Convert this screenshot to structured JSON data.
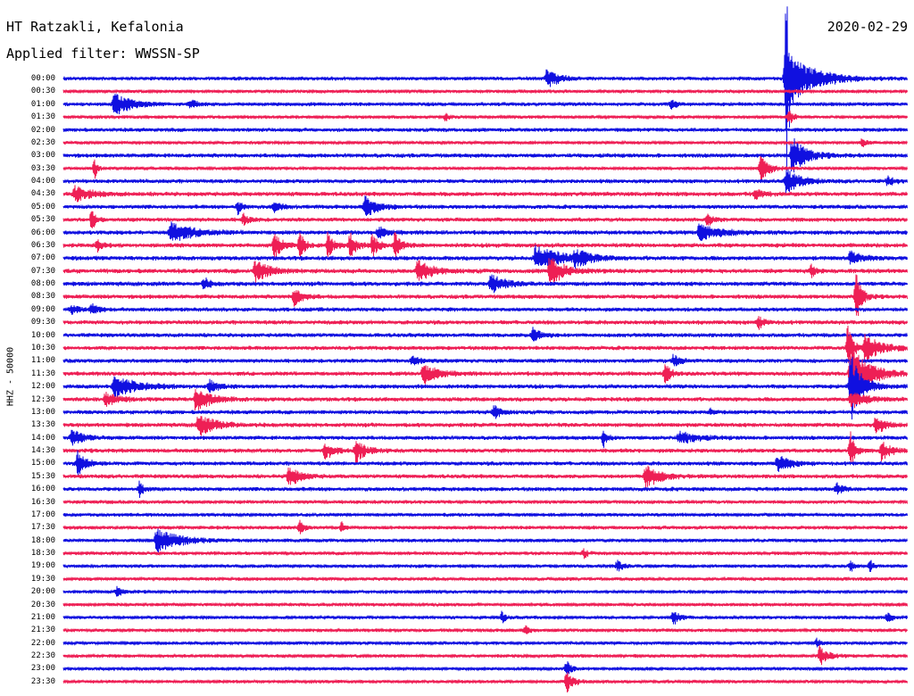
{
  "header": {
    "station": "HT Ratzakli, Kefalonia",
    "filter": "Applied filter: WWSSN-SP",
    "date": "2020-02-29",
    "channel": "HHZ - 50000"
  },
  "chart_data": {
    "type": "line",
    "title": "HT Ratzakli, Kefalonia",
    "subtitle": "Applied filter: WWSSN-SP",
    "ylabel": "HHZ - 50000",
    "row_minutes": 30,
    "row_labels": [
      "00:00",
      "00:30",
      "01:00",
      "01:30",
      "02:00",
      "02:30",
      "03:00",
      "03:30",
      "04:00",
      "04:30",
      "05:00",
      "05:30",
      "06:00",
      "06:30",
      "07:00",
      "07:30",
      "08:00",
      "08:30",
      "09:00",
      "09:30",
      "10:00",
      "10:30",
      "11:00",
      "11:30",
      "12:00",
      "12:30",
      "13:00",
      "13:30",
      "14:00",
      "14:30",
      "15:00",
      "15:30",
      "16:00",
      "16:30",
      "17:00",
      "17:30",
      "18:00",
      "18:30",
      "19:00",
      "19:30",
      "20:00",
      "20:30",
      "21:00",
      "21:30",
      "22:00",
      "22:30",
      "23:00",
      "23:30"
    ],
    "colors": [
      "#1010e0",
      "#ee1f55"
    ],
    "noise": [
      2.4,
      2.0,
      2.4,
      2.0,
      2.5,
      2.0,
      2.7,
      2.0,
      2.6,
      2.8,
      2.6,
      2.6,
      2.8,
      2.8,
      2.8,
      2.9,
      2.8,
      2.7,
      2.6,
      2.7,
      2.6,
      2.6,
      2.6,
      2.7,
      2.7,
      2.7,
      2.6,
      2.7,
      2.6,
      2.7,
      2.6,
      2.6,
      2.6,
      2.3,
      2.3,
      2.3,
      2.2,
      2.2,
      2.2,
      2.2,
      2.2,
      2.1,
      2.1,
      2.1,
      2.0,
      2.1,
      2.0,
      2.0
    ],
    "events": [
      {
        "row": 0,
        "minute": 17.2,
        "amp": 11,
        "duration": 0.8
      },
      {
        "row": 0,
        "minute": 25.7,
        "amp": 95,
        "duration": 0.2
      },
      {
        "row": 0,
        "minute": 25.7,
        "amp": 30,
        "duration": 2.0
      },
      {
        "row": 2,
        "minute": 1.8,
        "amp": 13,
        "duration": 1.2
      },
      {
        "row": 2,
        "minute": 4.5,
        "amp": 5,
        "duration": 0.6
      },
      {
        "row": 2,
        "minute": 21.6,
        "amp": 5,
        "duration": 0.4
      },
      {
        "row": 3,
        "minute": 13.6,
        "amp": 5,
        "duration": 0.3
      },
      {
        "row": 3,
        "minute": 25.8,
        "amp": 9,
        "duration": 0.3
      },
      {
        "row": 5,
        "minute": 28.4,
        "amp": 5,
        "duration": 0.3
      },
      {
        "row": 6,
        "minute": 25.9,
        "amp": 22,
        "duration": 1.0
      },
      {
        "row": 7,
        "minute": 24.8,
        "amp": 13,
        "duration": 0.7
      },
      {
        "row": 7,
        "minute": 1.1,
        "amp": 12,
        "duration": 0.2
      },
      {
        "row": 8,
        "minute": 25.7,
        "amp": 14,
        "duration": 1.0
      },
      {
        "row": 8,
        "minute": 29.3,
        "amp": 5,
        "duration": 0.5
      },
      {
        "row": 9,
        "minute": 0.4,
        "amp": 9,
        "duration": 1.1
      },
      {
        "row": 9,
        "minute": 24.6,
        "amp": 6,
        "duration": 0.5
      },
      {
        "row": 10,
        "minute": 10.7,
        "amp": 12,
        "duration": 0.9
      },
      {
        "row": 10,
        "minute": 6.2,
        "amp": 8,
        "duration": 0.3
      },
      {
        "row": 10,
        "minute": 7.5,
        "amp": 6,
        "duration": 0.5
      },
      {
        "row": 11,
        "minute": 1.0,
        "amp": 12,
        "duration": 0.3
      },
      {
        "row": 11,
        "minute": 6.4,
        "amp": 6,
        "duration": 0.4
      },
      {
        "row": 11,
        "minute": 22.9,
        "amp": 7,
        "duration": 0.4
      },
      {
        "row": 12,
        "minute": 3.8,
        "amp": 12,
        "duration": 1.5
      },
      {
        "row": 12,
        "minute": 11.2,
        "amp": 6,
        "duration": 0.6
      },
      {
        "row": 12,
        "minute": 22.6,
        "amp": 9,
        "duration": 1.5
      },
      {
        "row": 13,
        "minute": 7.5,
        "amp": 16,
        "duration": 0.5
      },
      {
        "row": 13,
        "minute": 8.4,
        "amp": 14,
        "duration": 0.4
      },
      {
        "row": 13,
        "minute": 9.4,
        "amp": 14,
        "duration": 0.4
      },
      {
        "row": 13,
        "minute": 10.2,
        "amp": 14,
        "duration": 0.4
      },
      {
        "row": 13,
        "minute": 11.0,
        "amp": 14,
        "duration": 0.4
      },
      {
        "row": 13,
        "minute": 11.8,
        "amp": 14,
        "duration": 0.4
      },
      {
        "row": 13,
        "minute": 1.2,
        "amp": 7,
        "duration": 0.3
      },
      {
        "row": 14,
        "minute": 16.8,
        "amp": 14,
        "duration": 1.8
      },
      {
        "row": 14,
        "minute": 18.2,
        "amp": 8,
        "duration": 1.0
      },
      {
        "row": 14,
        "minute": 28.0,
        "amp": 8,
        "duration": 0.8
      },
      {
        "row": 15,
        "minute": 6.8,
        "amp": 13,
        "duration": 1.0
      },
      {
        "row": 15,
        "minute": 12.6,
        "amp": 12,
        "duration": 1.0
      },
      {
        "row": 15,
        "minute": 17.3,
        "amp": 16,
        "duration": 1.0
      },
      {
        "row": 15,
        "minute": 26.6,
        "amp": 6,
        "duration": 0.4
      },
      {
        "row": 16,
        "minute": 15.2,
        "amp": 10,
        "duration": 1.0
      },
      {
        "row": 16,
        "minute": 5.0,
        "amp": 7,
        "duration": 0.4
      },
      {
        "row": 17,
        "minute": 8.2,
        "amp": 10,
        "duration": 0.6
      },
      {
        "row": 17,
        "minute": 28.2,
        "amp": 28,
        "duration": 0.4
      },
      {
        "row": 18,
        "minute": 0.3,
        "amp": 5,
        "duration": 0.5
      },
      {
        "row": 18,
        "minute": 1.0,
        "amp": 6,
        "duration": 0.5
      },
      {
        "row": 19,
        "minute": 24.7,
        "amp": 7,
        "duration": 0.5
      },
      {
        "row": 20,
        "minute": 16.7,
        "amp": 8,
        "duration": 0.6
      },
      {
        "row": 21,
        "minute": 27.9,
        "amp": 26,
        "duration": 0.4
      },
      {
        "row": 21,
        "minute": 28.5,
        "amp": 14,
        "duration": 1.2
      },
      {
        "row": 22,
        "minute": 12.4,
        "amp": 6,
        "duration": 0.5
      },
      {
        "row": 22,
        "minute": 21.7,
        "amp": 6,
        "duration": 0.6
      },
      {
        "row": 23,
        "minute": 12.8,
        "amp": 11,
        "duration": 1.0
      },
      {
        "row": 23,
        "minute": 21.4,
        "amp": 12,
        "duration": 0.4
      },
      {
        "row": 23,
        "minute": 28.0,
        "amp": 34,
        "duration": 1.3
      },
      {
        "row": 24,
        "minute": 1.8,
        "amp": 12,
        "duration": 1.6
      },
      {
        "row": 24,
        "minute": 5.2,
        "amp": 7,
        "duration": 0.6
      },
      {
        "row": 24,
        "minute": 28.0,
        "amp": 40,
        "duration": 0.8
      },
      {
        "row": 25,
        "minute": 1.5,
        "amp": 8,
        "duration": 0.8
      },
      {
        "row": 25,
        "minute": 4.7,
        "amp": 14,
        "duration": 1.0
      },
      {
        "row": 25,
        "minute": 28.0,
        "amp": 10,
        "duration": 1.0
      },
      {
        "row": 26,
        "minute": 15.3,
        "amp": 8,
        "duration": 0.5
      },
      {
        "row": 26,
        "minute": 23.0,
        "amp": 5,
        "duration": 0.3
      },
      {
        "row": 27,
        "minute": 4.8,
        "amp": 12,
        "duration": 1.2
      },
      {
        "row": 27,
        "minute": 28.9,
        "amp": 10,
        "duration": 0.7
      },
      {
        "row": 28,
        "minute": 0.3,
        "amp": 10,
        "duration": 0.8
      },
      {
        "row": 28,
        "minute": 19.2,
        "amp": 10,
        "duration": 0.3
      },
      {
        "row": 28,
        "minute": 21.9,
        "amp": 7,
        "duration": 1.2
      },
      {
        "row": 29,
        "minute": 9.3,
        "amp": 10,
        "duration": 0.6
      },
      {
        "row": 29,
        "minute": 10.4,
        "amp": 14,
        "duration": 0.6
      },
      {
        "row": 29,
        "minute": 28.0,
        "amp": 22,
        "duration": 0.3
      },
      {
        "row": 29,
        "minute": 29.1,
        "amp": 12,
        "duration": 0.6
      },
      {
        "row": 30,
        "minute": 0.5,
        "amp": 14,
        "duration": 0.6
      },
      {
        "row": 30,
        "minute": 25.4,
        "amp": 9,
        "duration": 0.9
      },
      {
        "row": 31,
        "minute": 8.0,
        "amp": 12,
        "duration": 0.8
      },
      {
        "row": 31,
        "minute": 20.7,
        "amp": 14,
        "duration": 1.0
      },
      {
        "row": 32,
        "minute": 2.7,
        "amp": 8,
        "duration": 0.3
      },
      {
        "row": 32,
        "minute": 27.5,
        "amp": 6,
        "duration": 0.5
      },
      {
        "row": 35,
        "minute": 8.4,
        "amp": 8,
        "duration": 0.3
      },
      {
        "row": 35,
        "minute": 9.9,
        "amp": 6,
        "duration": 0.2
      },
      {
        "row": 36,
        "minute": 3.3,
        "amp": 14,
        "duration": 1.6
      },
      {
        "row": 37,
        "minute": 18.5,
        "amp": 5,
        "duration": 0.3
      },
      {
        "row": 38,
        "minute": 19.7,
        "amp": 6,
        "duration": 0.4
      },
      {
        "row": 38,
        "minute": 28.0,
        "amp": 7,
        "duration": 0.2
      },
      {
        "row": 38,
        "minute": 28.7,
        "amp": 7,
        "duration": 0.2
      },
      {
        "row": 40,
        "minute": 1.9,
        "amp": 5,
        "duration": 0.4
      },
      {
        "row": 42,
        "minute": 15.6,
        "amp": 6,
        "duration": 0.3
      },
      {
        "row": 42,
        "minute": 21.7,
        "amp": 8,
        "duration": 0.5
      },
      {
        "row": 42,
        "minute": 29.3,
        "amp": 5,
        "duration": 0.4
      },
      {
        "row": 43,
        "minute": 16.4,
        "amp": 6,
        "duration": 0.3
      },
      {
        "row": 44,
        "minute": 26.8,
        "amp": 5,
        "duration": 0.3
      },
      {
        "row": 45,
        "minute": 26.9,
        "amp": 11,
        "duration": 0.6
      },
      {
        "row": 46,
        "minute": 17.9,
        "amp": 10,
        "duration": 0.3
      },
      {
        "row": 47,
        "minute": 17.9,
        "amp": 12,
        "duration": 0.5
      }
    ]
  }
}
